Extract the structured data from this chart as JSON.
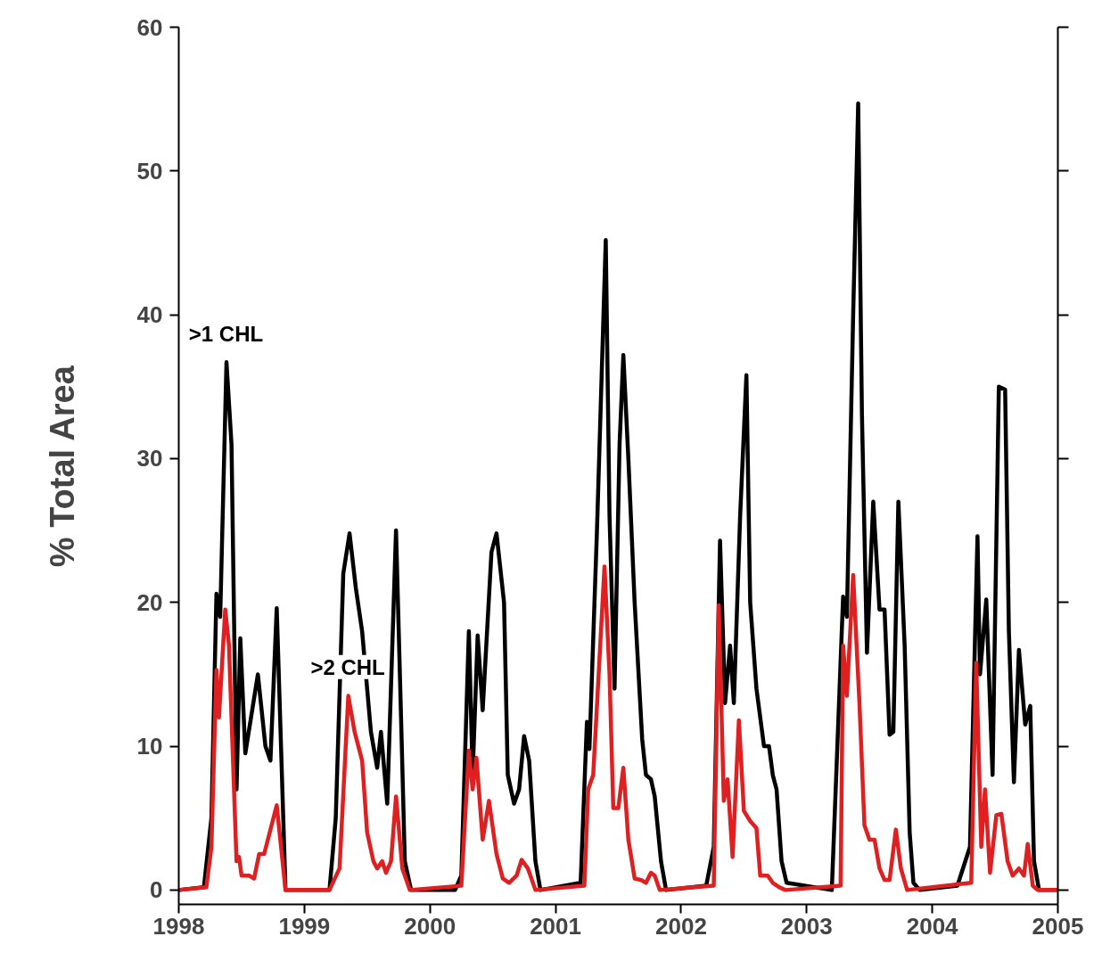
{
  "chart_data": {
    "type": "line",
    "ylabel": "% Total Area",
    "xlim": [
      1998,
      2005
    ],
    "ylim": [
      -1,
      60
    ],
    "xticks": [
      1998,
      1999,
      2000,
      2001,
      2002,
      2003,
      2004,
      2005
    ],
    "yticks": [
      0,
      10,
      20,
      30,
      40,
      50,
      60
    ],
    "grid": false,
    "marker": "none",
    "line_style": "solid",
    "annotations": [
      ">1 CHL",
      ">2 CHL"
    ],
    "series": [
      {
        "color": "#000000",
        "x": [
          1998.0,
          1998.2,
          1998.26,
          1998.3,
          1998.33,
          1998.38,
          1998.42,
          1998.46,
          1998.49,
          1998.53,
          1998.63,
          1998.69,
          1998.73,
          1998.78,
          1998.85,
          1999.2,
          1999.25,
          1999.31,
          1999.36,
          1999.41,
          1999.46,
          1999.53,
          1999.58,
          1999.61,
          1999.66,
          1999.73,
          1999.77,
          1999.8,
          1999.85,
          2000.2,
          2000.25,
          2000.31,
          2000.34,
          2000.38,
          2000.42,
          2000.49,
          2000.53,
          2000.59,
          2000.62,
          2000.67,
          2000.71,
          2000.75,
          2000.79,
          2000.84,
          2000.88,
          2001.2,
          2001.25,
          2001.27,
          2001.33,
          2001.4,
          2001.43,
          2001.47,
          2001.51,
          2001.54,
          2001.58,
          2001.63,
          2001.69,
          2001.72,
          2001.76,
          2001.79,
          2001.84,
          2001.88,
          2002.2,
          2002.26,
          2002.31,
          2002.35,
          2002.39,
          2002.42,
          2002.47,
          2002.52,
          2002.55,
          2002.6,
          2002.66,
          2002.7,
          2002.73,
          2002.76,
          2002.8,
          2002.84,
          2003.2,
          2003.29,
          2003.32,
          2003.37,
          2003.41,
          2003.44,
          2003.48,
          2003.53,
          2003.58,
          2003.62,
          2003.66,
          2003.69,
          2003.73,
          2003.78,
          2003.82,
          2003.85,
          2003.9,
          2004.2,
          2004.3,
          2004.36,
          2004.38,
          2004.43,
          2004.48,
          2004.53,
          2004.58,
          2004.61,
          2004.65,
          2004.69,
          2004.74,
          2004.78,
          2004.81,
          2004.85,
          2005.0
        ],
        "values": [
          0,
          0.2,
          5,
          20.6,
          19,
          36.7,
          31,
          7,
          17.5,
          9.5,
          15,
          10,
          9,
          19.6,
          0,
          0,
          5,
          22,
          24.8,
          21,
          18,
          11,
          8.5,
          11,
          6,
          25,
          12,
          2,
          0,
          0,
          1,
          18,
          8,
          17.7,
          12.5,
          23.5,
          24.8,
          20,
          8,
          6,
          7,
          10.7,
          9,
          2,
          0,
          0.5,
          11.7,
          9.8,
          25,
          45.2,
          26,
          14,
          31,
          37.2,
          30,
          20,
          10.5,
          8,
          7.7,
          6.5,
          2,
          0,
          0.3,
          3,
          24.3,
          13,
          17,
          13,
          26,
          35.8,
          20,
          14,
          10,
          10,
          8,
          7,
          2,
          0.5,
          0,
          20.4,
          19,
          40,
          54.7,
          33,
          16.5,
          27,
          19.5,
          19.5,
          10.8,
          11,
          27,
          17,
          4,
          0.5,
          0,
          0.3,
          3,
          24.6,
          15,
          20.2,
          8,
          35,
          34.8,
          18,
          7.5,
          16.7,
          11.5,
          12.8,
          2,
          0,
          0
        ]
      },
      {
        "color": "#e02020",
        "x": [
          1998.0,
          1998.22,
          1998.26,
          1998.3,
          1998.32,
          1998.37,
          1998.4,
          1998.46,
          1998.48,
          1998.5,
          1998.56,
          1998.6,
          1998.64,
          1998.68,
          1998.78,
          1998.85,
          1999.2,
          1999.28,
          1999.35,
          1999.4,
          1999.46,
          1999.5,
          1999.55,
          1999.58,
          1999.62,
          1999.65,
          1999.69,
          1999.73,
          1999.78,
          1999.84,
          2000.25,
          2000.31,
          2000.34,
          2000.37,
          2000.42,
          2000.47,
          2000.53,
          2000.58,
          2000.63,
          2000.69,
          2000.73,
          2000.78,
          2000.84,
          2001.23,
          2001.26,
          2001.3,
          2001.39,
          2001.43,
          2001.46,
          2001.5,
          2001.54,
          2001.58,
          2001.63,
          2001.68,
          2001.72,
          2001.76,
          2001.79,
          2001.83,
          2002.26,
          2002.3,
          2002.34,
          2002.37,
          2002.41,
          2002.46,
          2002.5,
          2002.55,
          2002.6,
          2002.63,
          2002.69,
          2002.73,
          2002.78,
          2002.83,
          2003.27,
          2003.29,
          2003.32,
          2003.37,
          2003.42,
          2003.46,
          2003.5,
          2003.54,
          2003.58,
          2003.62,
          2003.66,
          2003.71,
          2003.75,
          2003.8,
          2004.31,
          2004.35,
          2004.39,
          2004.42,
          2004.46,
          2004.51,
          2004.55,
          2004.6,
          2004.64,
          2004.69,
          2004.73,
          2004.76,
          2004.8,
          2004.84,
          2005.0
        ],
        "values": [
          0,
          0.2,
          3,
          15.3,
          12,
          19.5,
          17,
          2,
          2.3,
          1,
          1,
          0.8,
          2.5,
          2.5,
          5.9,
          0,
          0,
          1.5,
          13.5,
          11,
          9,
          4,
          2,
          1.5,
          2,
          1.2,
          2,
          6.5,
          1.5,
          0,
          0.3,
          9.7,
          7,
          9.2,
          3.5,
          6.2,
          2.5,
          0.8,
          0.5,
          1,
          2.1,
          1.5,
          0,
          0.3,
          7,
          8,
          22.5,
          15,
          5.7,
          5.7,
          8.5,
          3.5,
          0.8,
          0.7,
          0.5,
          1.2,
          1,
          0,
          0.3,
          19.8,
          6.2,
          7.7,
          2.3,
          11.8,
          5.5,
          4.8,
          4.3,
          1,
          1,
          0.5,
          0.2,
          0,
          0.3,
          17,
          13.5,
          21.9,
          13,
          4.5,
          3.5,
          3.5,
          1.5,
          0.7,
          0.7,
          4.2,
          1.5,
          0,
          0.5,
          15.8,
          3,
          7,
          1.2,
          5.2,
          5.3,
          2,
          1,
          1.5,
          1,
          3.2,
          0.3,
          0,
          0
        ]
      }
    ]
  }
}
